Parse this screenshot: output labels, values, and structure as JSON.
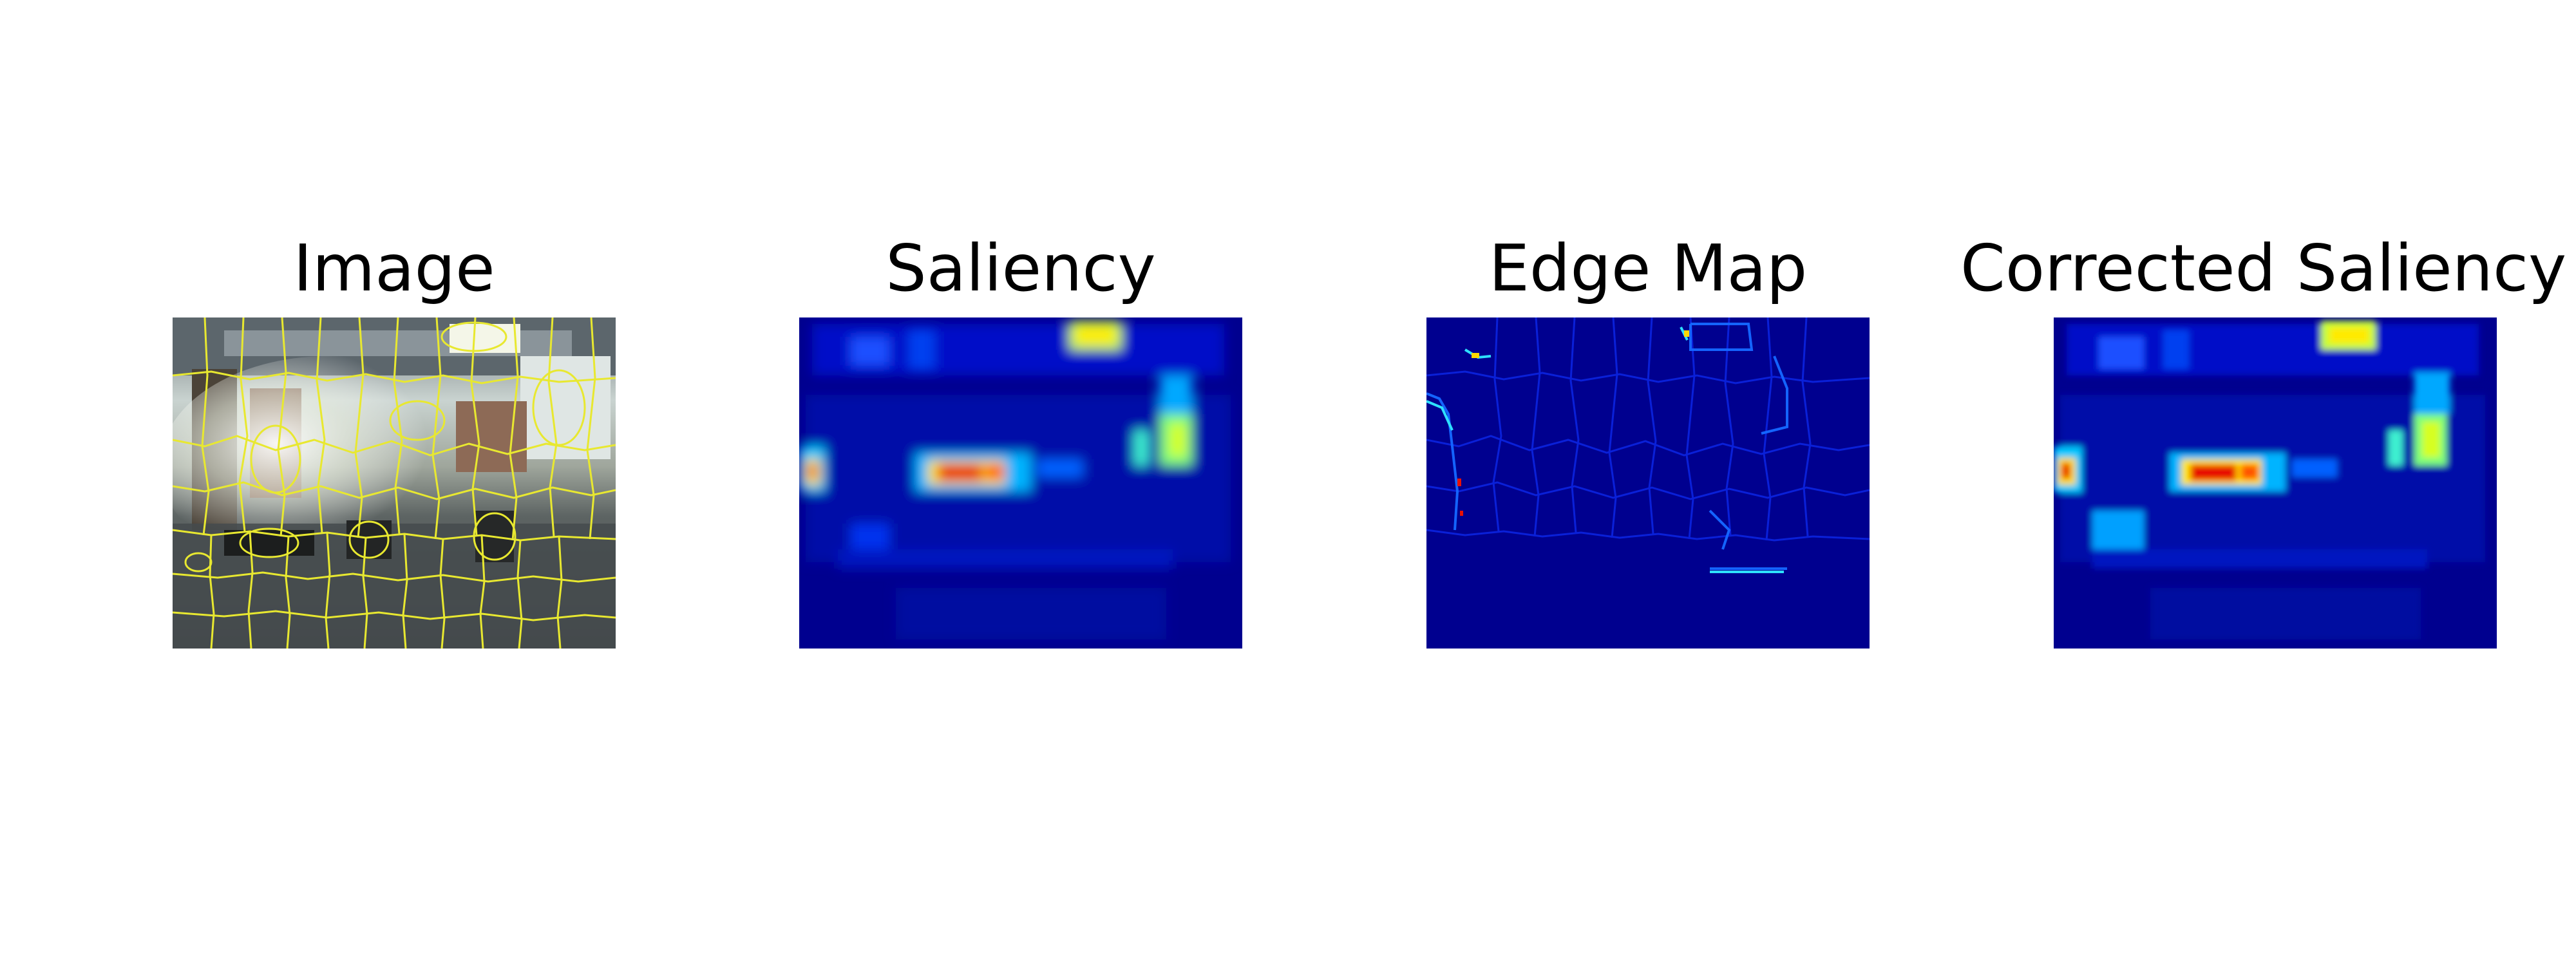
{
  "figure": {
    "panels": [
      {
        "id": "image",
        "title": "Image"
      },
      {
        "id": "saliency",
        "title": "Saliency"
      },
      {
        "id": "edge",
        "title": "Edge Map"
      },
      {
        "id": "corrected",
        "title": "Corrected Saliency"
      }
    ]
  },
  "colors": {
    "background": "#ffffff",
    "jet_low": "#00008f",
    "jet_mid": "#00a0ff",
    "jet_high": "#e81000",
    "contour": "#e8e830"
  }
}
